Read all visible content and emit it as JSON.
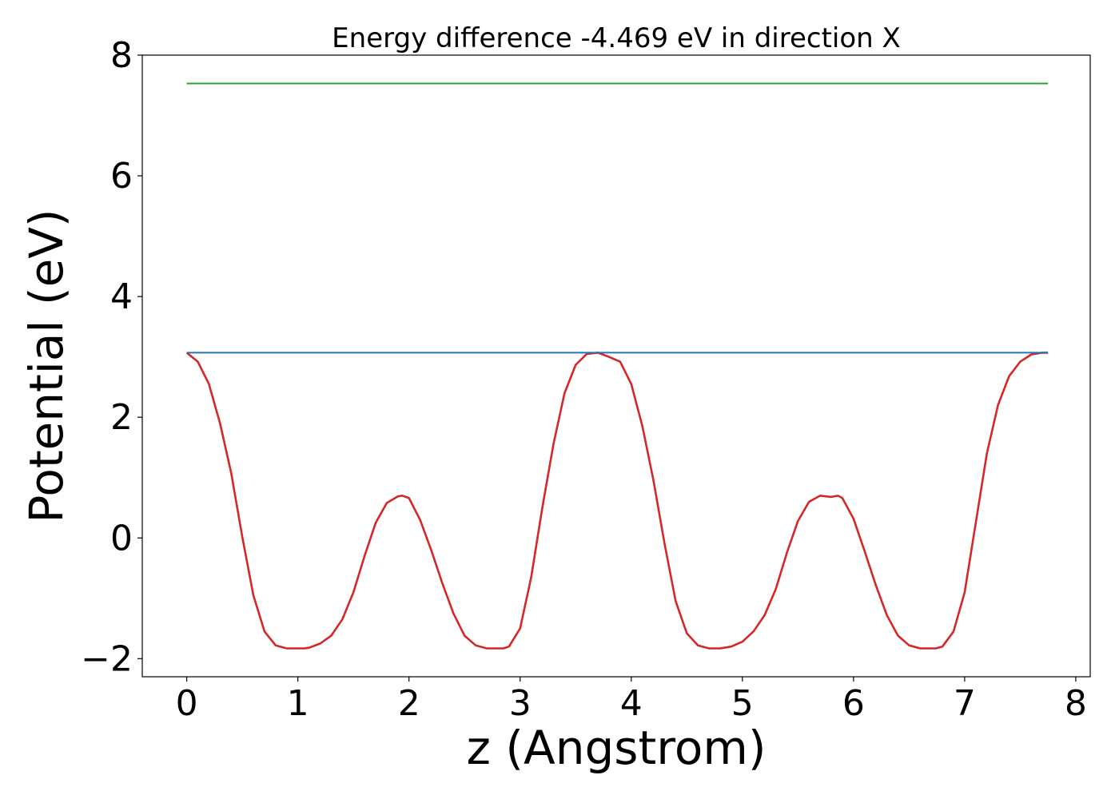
{
  "chart_data": {
    "type": "line",
    "title": "Energy difference -4.469 eV in direction X",
    "xlabel": "z (Angstrom)",
    "ylabel": "Potential (eV)",
    "xlim": [
      -0.4,
      8.13
    ],
    "ylim": [
      -2.3,
      8.0
    ],
    "xticks": [
      0,
      1,
      2,
      3,
      4,
      5,
      6,
      7,
      8
    ],
    "xtick_labels": [
      "0",
      "1",
      "2",
      "3",
      "4",
      "5",
      "6",
      "7",
      "8"
    ],
    "yticks": [
      -2,
      0,
      2,
      4,
      6,
      8
    ],
    "ytick_labels": [
      "−2",
      "0",
      "2",
      "4",
      "6",
      "8"
    ],
    "grid": false,
    "legend": "none",
    "series": [
      {
        "color": "#d62728",
        "x": [
          0.0,
          0.1,
          0.2,
          0.3,
          0.4,
          0.5,
          0.6,
          0.7,
          0.8,
          0.9,
          1.0,
          1.06,
          1.1,
          1.2,
          1.3,
          1.4,
          1.5,
          1.6,
          1.7,
          1.8,
          1.9,
          1.94,
          2.0,
          2.1,
          2.2,
          2.3,
          2.4,
          2.5,
          2.6,
          2.7,
          2.8,
          2.85,
          2.9,
          3.0,
          3.1,
          3.2,
          3.3,
          3.4,
          3.5,
          3.6,
          3.7,
          3.8,
          3.9,
          4.0,
          4.1,
          4.2,
          4.3,
          4.4,
          4.5,
          4.6,
          4.7,
          4.8,
          4.9,
          5.0,
          5.1,
          5.2,
          5.3,
          5.4,
          5.5,
          5.6,
          5.7,
          5.8,
          5.86,
          5.9,
          6.0,
          6.1,
          6.2,
          6.3,
          6.4,
          6.5,
          6.6,
          6.7,
          6.74,
          6.8,
          6.9,
          7.0,
          7.1,
          7.2,
          7.3,
          7.4,
          7.5,
          7.6,
          7.7,
          7.75
        ],
        "y": [
          3.07,
          2.92,
          2.55,
          1.9,
          1.08,
          0.02,
          -0.95,
          -1.55,
          -1.78,
          -1.83,
          -1.83,
          -1.83,
          -1.82,
          -1.75,
          -1.62,
          -1.35,
          -0.9,
          -0.3,
          0.25,
          0.58,
          0.69,
          0.7,
          0.66,
          0.3,
          -0.2,
          -0.75,
          -1.25,
          -1.62,
          -1.78,
          -1.83,
          -1.83,
          -1.83,
          -1.8,
          -1.5,
          -0.65,
          0.5,
          1.55,
          2.4,
          2.87,
          3.05,
          3.07,
          3.0,
          2.92,
          2.55,
          1.85,
          0.95,
          -0.1,
          -1.05,
          -1.58,
          -1.78,
          -1.83,
          -1.83,
          -1.8,
          -1.72,
          -1.55,
          -1.28,
          -0.85,
          -0.25,
          0.28,
          0.6,
          0.7,
          0.68,
          0.7,
          0.66,
          0.32,
          -0.22,
          -0.78,
          -1.28,
          -1.62,
          -1.78,
          -1.83,
          -1.83,
          -1.83,
          -1.8,
          -1.55,
          -0.9,
          0.25,
          1.4,
          2.2,
          2.68,
          2.92,
          3.04,
          3.07,
          3.07
        ]
      },
      {
        "color": "#1f77b4",
        "x": [
          0.0,
          7.75
        ],
        "y": [
          3.07,
          3.07
        ]
      },
      {
        "color": "#2ca02c",
        "x": [
          0.0,
          7.75
        ],
        "y": [
          7.53,
          7.53
        ]
      }
    ]
  }
}
